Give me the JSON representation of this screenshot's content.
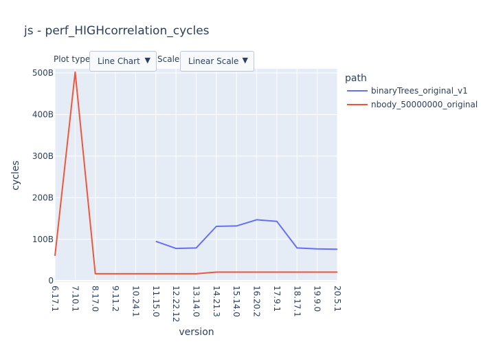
{
  "controls": {
    "plot_type_label": "Plot type:",
    "plot_type_value": "Line Chart",
    "scale_label": "Scale:",
    "scale_value": "Linear Scale"
  },
  "colors": {
    "plot_bg": "#e5ecf6",
    "grid": "#ffffff",
    "text": "#2a3f5f"
  },
  "chart_data": {
    "type": "line",
    "title": "js - perf_HIGHcorrelation_cycles",
    "xlabel": "version",
    "ylabel": "cycles",
    "legend_title": "path",
    "legend_placement": "right",
    "grid": true,
    "categories": [
      "6.17.1",
      "7.10.1",
      "8.17.0",
      "9.11.2",
      "10.24.1",
      "11.15.0",
      "12.22.12",
      "13.14.0",
      "14.21.3",
      "15.14.0",
      "16.20.2",
      "17.9.1",
      "18.17.1",
      "19.9.0",
      "20.5.1"
    ],
    "y_tick_values": [
      0,
      100,
      200,
      300,
      400,
      500
    ],
    "y_tick_labels": [
      "0",
      "100B",
      "200B",
      "300B",
      "400B",
      "500B"
    ],
    "ylim": [
      -3,
      510
    ],
    "y_unit": "billion cycles",
    "series": [
      {
        "name": "binaryTrees_original_v1",
        "color": "#636efa",
        "values": [
          null,
          null,
          null,
          null,
          null,
          95,
          78,
          79,
          131,
          132,
          147,
          143,
          79,
          77,
          76
        ]
      },
      {
        "name": "nbody_50000000_original",
        "color": "#ef553b",
        "values": [
          60,
          502,
          17,
          17,
          17,
          17,
          17,
          17,
          21,
          21,
          21,
          21,
          21,
          21,
          21
        ]
      }
    ]
  }
}
